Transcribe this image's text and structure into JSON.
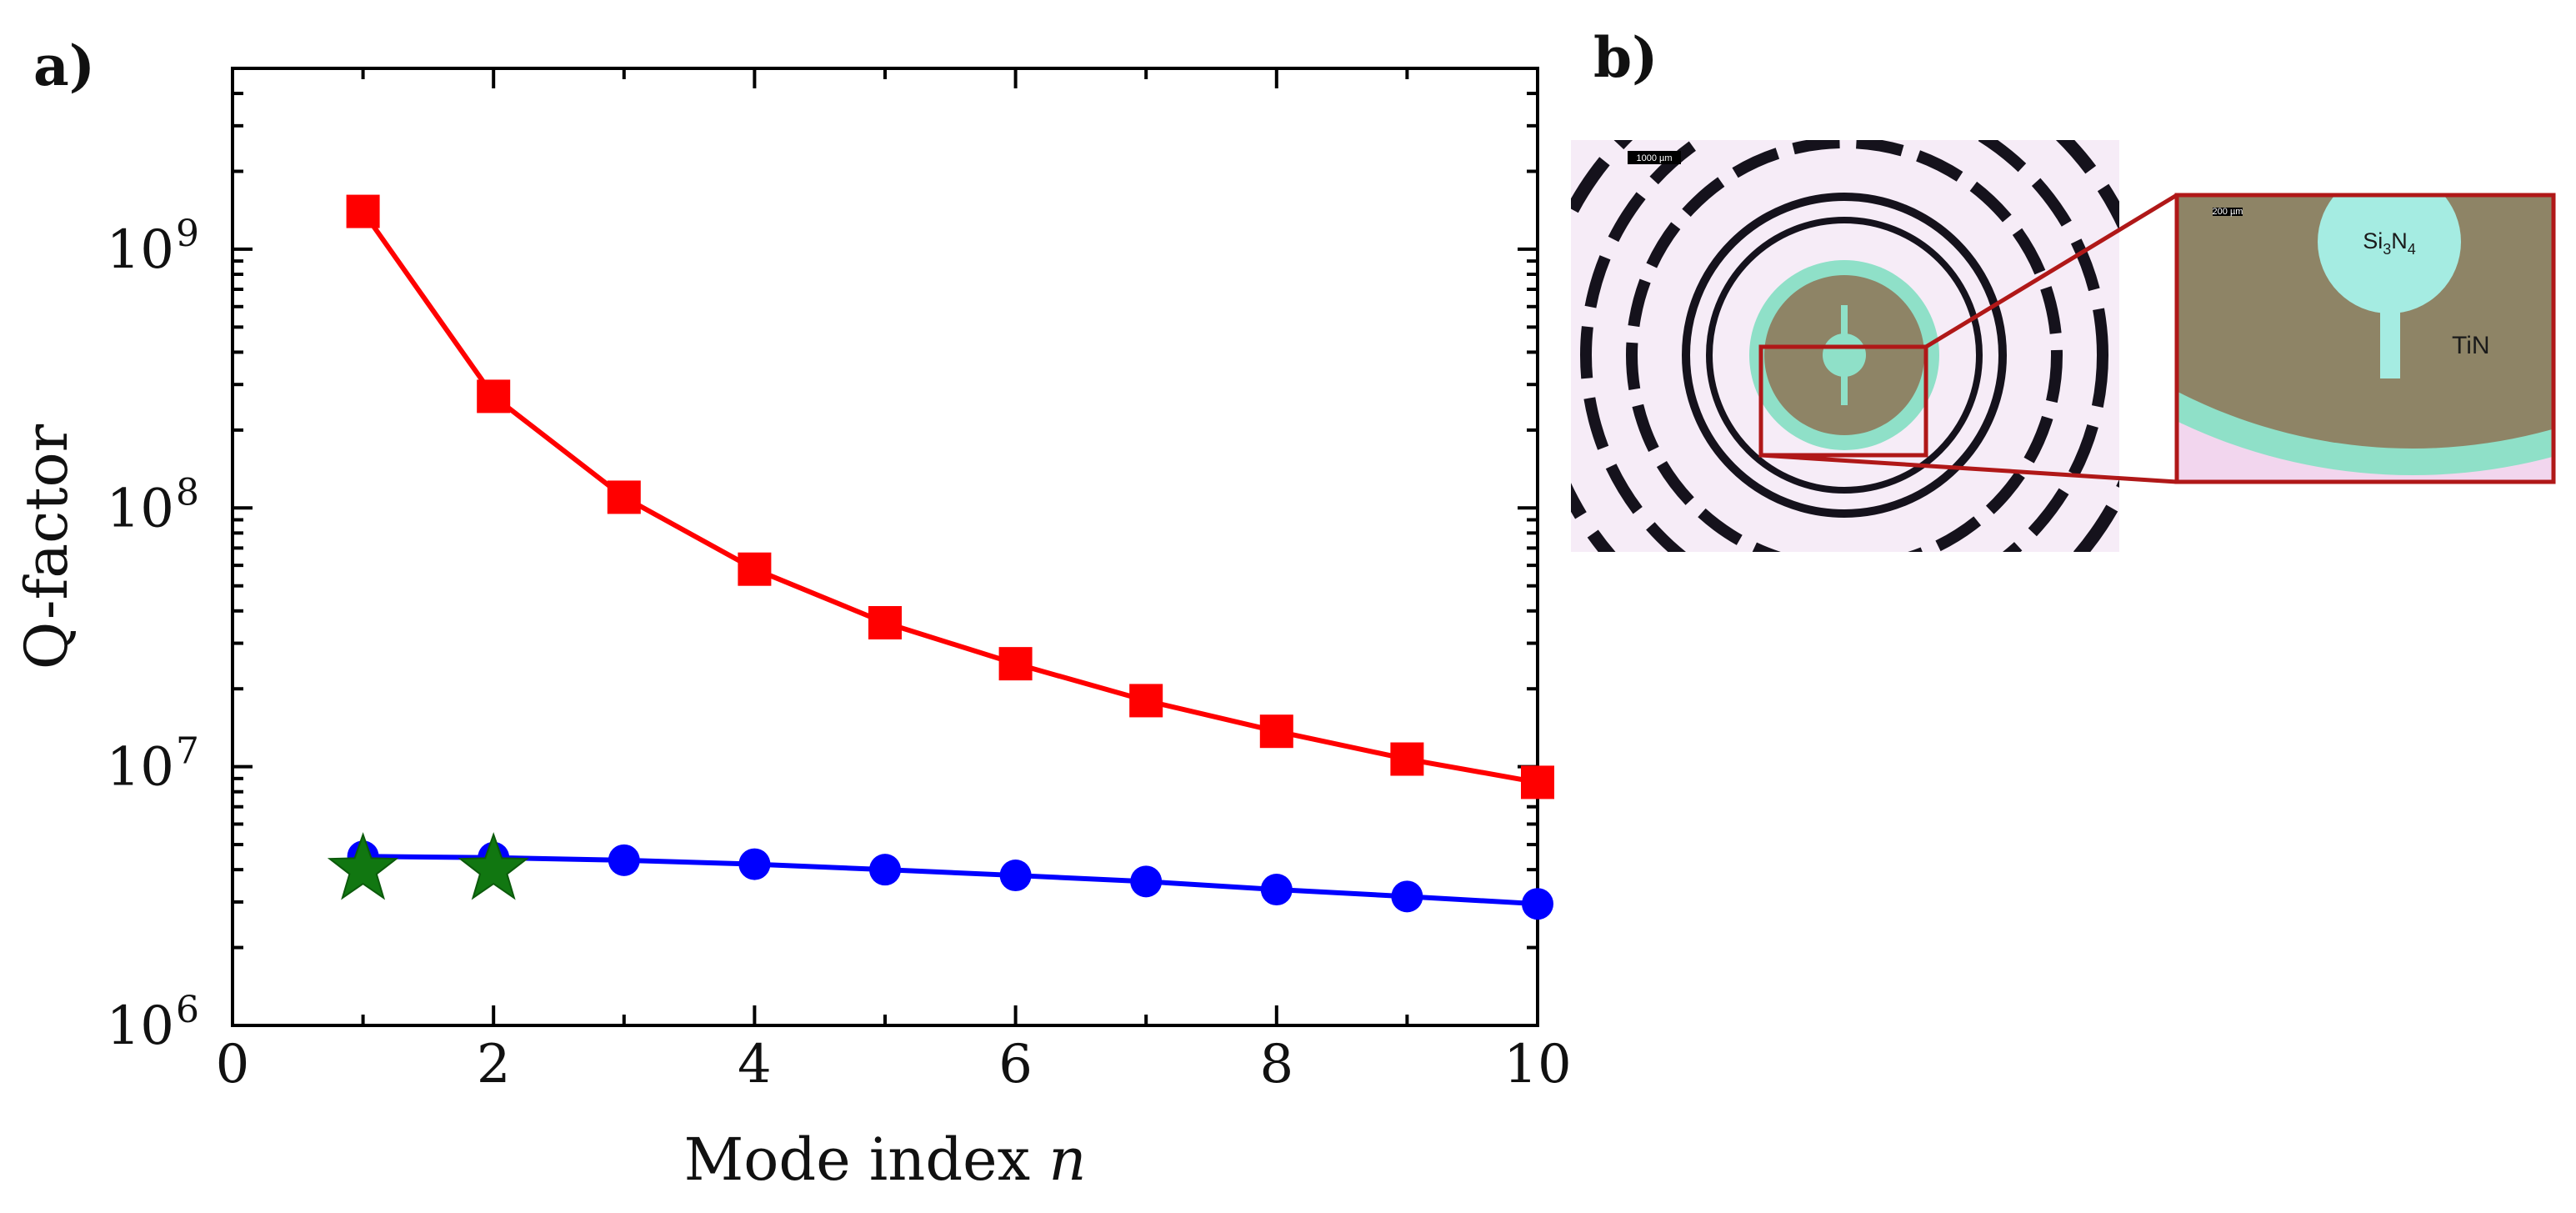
{
  "panels": {
    "a_label": "a)",
    "b_label": "b)"
  },
  "chart_data": {
    "type": "line",
    "yscale": "log",
    "xlabel": "Mode index",
    "xlabel_var": "n",
    "ylabel": "Q-factor",
    "xlim": [
      0,
      10
    ],
    "ylim": [
      1000000,
      5000000000
    ],
    "xticks": [
      0,
      2,
      4,
      6,
      8,
      10
    ],
    "yticks": [
      {
        "value": 1000000,
        "base": "10",
        "exp": "6"
      },
      {
        "value": 10000000,
        "base": "10",
        "exp": "7"
      },
      {
        "value": 100000000,
        "base": "10",
        "exp": "8"
      },
      {
        "value": 1000000000,
        "base": "10",
        "exp": "9"
      }
    ],
    "series": [
      {
        "name": "red-squares",
        "color": "#ff0000",
        "marker": "square",
        "x": [
          1,
          2,
          3,
          4,
          5,
          6,
          7,
          8,
          9,
          10
        ],
        "values": [
          1400000000,
          270000000,
          110000000,
          58000000,
          36000000,
          25000000,
          18000000,
          13700000,
          10700000,
          8700000
        ]
      },
      {
        "name": "blue-circles",
        "color": "#0000ff",
        "marker": "circle",
        "x": [
          1,
          2,
          3,
          4,
          5,
          6,
          7,
          8,
          9,
          10
        ],
        "values": [
          4500000,
          4450000,
          4350000,
          4200000,
          4000000,
          3800000,
          3600000,
          3350000,
          3150000,
          2950000
        ]
      },
      {
        "name": "green-stars",
        "color": "#117711",
        "marker": "star",
        "x": [
          1,
          2
        ],
        "values": [
          4000000,
          4000000
        ]
      }
    ]
  },
  "micrograph": {
    "scalebar_main": "1000 µm",
    "scalebar_inset": "200 µm",
    "label_si": "Si",
    "label_si_sub": "3",
    "label_n": "N",
    "label_n_sub": "4",
    "label_tin": "TiN",
    "colors": {
      "background": "#f6ecf7",
      "rings": "#15121c",
      "film": "#8e8466",
      "substrate": "#8fe0c8",
      "zoom_box": "#b01818"
    }
  }
}
